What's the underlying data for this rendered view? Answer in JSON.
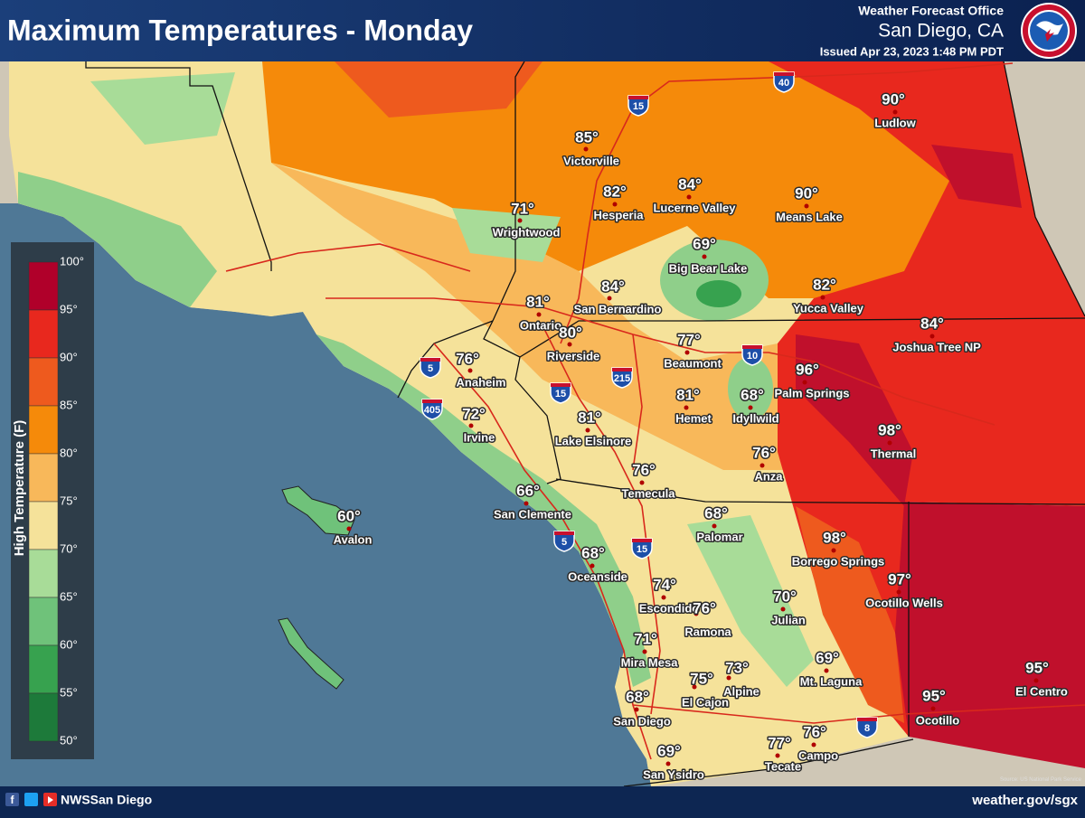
{
  "header": {
    "title": "Maximum Temperatures - Monday",
    "office": "Weather Forecast Office",
    "location": "San Diego, CA",
    "issued": "Issued Apr 23, 2023 1:48 PM PDT"
  },
  "legend": {
    "title": "High Temperature (F)",
    "ticks": [
      "100°",
      "95°",
      "90°",
      "85°",
      "80°",
      "75°",
      "70°",
      "65°",
      "60°",
      "55°",
      "50°"
    ]
  },
  "cities": [
    {
      "temp": "85°",
      "name": "Victorville"
    },
    {
      "temp": "90°",
      "name": "Ludlow"
    },
    {
      "temp": "82°",
      "name": "Hesperia"
    },
    {
      "temp": "84°",
      "name": "Lucerne Valley"
    },
    {
      "temp": "90°",
      "name": "Means Lake"
    },
    {
      "temp": "71°",
      "name": "Wrightwood"
    },
    {
      "temp": "69°",
      "name": "Big Bear Lake"
    },
    {
      "temp": "84°",
      "name": "San Bernardino"
    },
    {
      "temp": "82°",
      "name": "Yucca Valley"
    },
    {
      "temp": "81°",
      "name": "Ontario"
    },
    {
      "temp": "80°",
      "name": "Riverside"
    },
    {
      "temp": "84°",
      "name": "Joshua Tree NP"
    },
    {
      "temp": "77°",
      "name": "Beaumont"
    },
    {
      "temp": "76°",
      "name": "Anaheim"
    },
    {
      "temp": "96°",
      "name": "Palm Springs"
    },
    {
      "temp": "81°",
      "name": "Hemet"
    },
    {
      "temp": "68°",
      "name": "Idyllwild"
    },
    {
      "temp": "72°",
      "name": "Irvine"
    },
    {
      "temp": "81°",
      "name": "Lake Elsinore"
    },
    {
      "temp": "98°",
      "name": "Thermal"
    },
    {
      "temp": "76°",
      "name": "Anza"
    },
    {
      "temp": "76°",
      "name": "Temecula"
    },
    {
      "temp": "66°",
      "name": "San Clemente"
    },
    {
      "temp": "60°",
      "name": "Avalon"
    },
    {
      "temp": "68°",
      "name": "Palomar"
    },
    {
      "temp": "98°",
      "name": "Borrego Springs"
    },
    {
      "temp": "68°",
      "name": "Oceanside"
    },
    {
      "temp": "97°",
      "name": "Ocotillo Wells"
    },
    {
      "temp": "74°",
      "name": "Escondido"
    },
    {
      "temp": "76°",
      "name": "Ramona"
    },
    {
      "temp": "70°",
      "name": "Julian"
    },
    {
      "temp": "71°",
      "name": "Mira Mesa"
    },
    {
      "temp": "69°",
      "name": "Mt. Laguna"
    },
    {
      "temp": "73°",
      "name": "Alpine"
    },
    {
      "temp": "75°",
      "name": "El Cajon"
    },
    {
      "temp": "95°",
      "name": "El Centro"
    },
    {
      "temp": "68°",
      "name": "San Diego"
    },
    {
      "temp": "95°",
      "name": "Ocotillo"
    },
    {
      "temp": "76°",
      "name": "Campo"
    },
    {
      "temp": "77°",
      "name": "Tecate"
    },
    {
      "temp": "69°",
      "name": "San Ysidro"
    }
  ],
  "highways": [
    "40",
    "15",
    "5",
    "405",
    "15",
    "215",
    "10",
    "5",
    "15",
    "8"
  ],
  "footer": {
    "social": "NWSSan Diego",
    "website": "weather.gov/sgx",
    "source": "Source: US National Park Service"
  }
}
